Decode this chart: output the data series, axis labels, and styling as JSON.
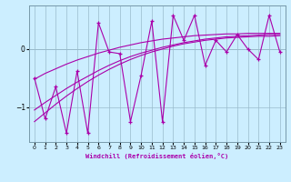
{
  "xlabel": "Windchill (Refroidissement éolien,°C)",
  "background_color": "#cceeff",
  "line_color": "#aa00aa",
  "grid_color": "#99bbcc",
  "x": [
    0,
    1,
    2,
    3,
    4,
    5,
    6,
    7,
    8,
    9,
    10,
    11,
    12,
    13,
    14,
    15,
    16,
    17,
    18,
    19,
    20,
    21,
    22,
    23
  ],
  "y_main": [
    -0.5,
    -1.2,
    -0.65,
    -1.45,
    -0.38,
    -1.45,
    0.45,
    -0.05,
    -0.08,
    -1.25,
    -0.45,
    0.48,
    -1.25,
    0.58,
    0.15,
    0.58,
    -0.28,
    0.15,
    -0.05,
    0.25,
    0.0,
    -0.18,
    0.58,
    -0.05
  ],
  "y_trend1": [
    -1.05,
    -0.92,
    -0.8,
    -0.68,
    -0.57,
    -0.47,
    -0.37,
    -0.28,
    -0.2,
    -0.13,
    -0.07,
    -0.02,
    0.03,
    0.07,
    0.11,
    0.14,
    0.17,
    0.19,
    0.21,
    0.22,
    0.23,
    0.24,
    0.25,
    0.25
  ],
  "y_trend2": [
    -1.25,
    -1.1,
    -0.95,
    -0.81,
    -0.68,
    -0.56,
    -0.45,
    -0.35,
    -0.26,
    -0.18,
    -0.11,
    -0.05,
    0.0,
    0.05,
    0.09,
    0.12,
    0.15,
    0.17,
    0.19,
    0.2,
    0.21,
    0.22,
    0.22,
    0.23
  ],
  "y_trend3": [
    -0.52,
    -0.42,
    -0.34,
    -0.26,
    -0.19,
    -0.13,
    -0.07,
    -0.02,
    0.03,
    0.07,
    0.11,
    0.14,
    0.17,
    0.19,
    0.21,
    0.23,
    0.24,
    0.25,
    0.26,
    0.26,
    0.27,
    0.27,
    0.27,
    0.27
  ],
  "ylim": [
    -1.6,
    0.75
  ],
  "yticks": [
    0,
    -1
  ],
  "xticks": [
    0,
    1,
    2,
    3,
    4,
    5,
    6,
    7,
    8,
    9,
    10,
    11,
    12,
    13,
    14,
    15,
    16,
    17,
    18,
    19,
    20,
    21,
    22,
    23
  ]
}
